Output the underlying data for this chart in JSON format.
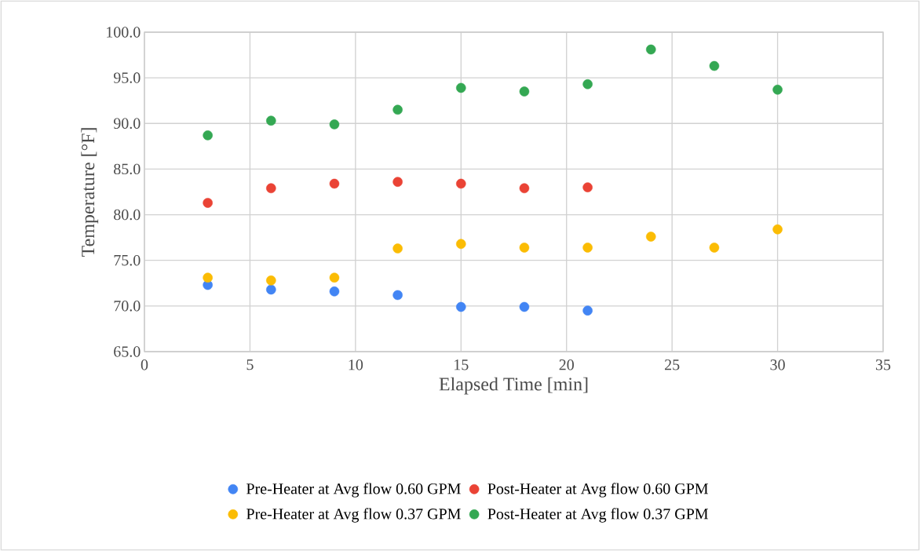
{
  "chart_data": {
    "type": "scatter",
    "xlabel": "Elapsed Time [min]",
    "ylabel": "Temperature [°F]",
    "xlim": [
      0,
      35
    ],
    "xticks": [
      0,
      5,
      10,
      15,
      20,
      25,
      30,
      35
    ],
    "ylim": [
      65,
      100
    ],
    "yticks": [
      {
        "value": 65,
        "label": "65.0"
      },
      {
        "value": 70,
        "label": "70.0"
      },
      {
        "value": 75,
        "label": "75.0"
      },
      {
        "value": 80,
        "label": "80.0"
      },
      {
        "value": 85,
        "label": "85.0"
      },
      {
        "value": 90,
        "label": "90.0"
      },
      {
        "value": 95,
        "label": "95.0"
      },
      {
        "value": 100,
        "label": "100.0"
      }
    ],
    "grid": true,
    "legend": "bottom",
    "series": [
      {
        "name": "Pre-Heater at Avg flow 0.60 GPM",
        "color": "#4285f4",
        "x": [
          3,
          6,
          9,
          12,
          15,
          18,
          21
        ],
        "values": [
          72.3,
          71.8,
          71.6,
          71.2,
          69.9,
          69.9,
          69.5
        ]
      },
      {
        "name": "Post-Heater at Avg flow 0.60 GPM",
        "color": "#ea4335",
        "x": [
          3,
          6,
          9,
          12,
          15,
          18,
          21
        ],
        "values": [
          81.3,
          82.9,
          83.4,
          83.6,
          83.4,
          82.9,
          83.0
        ]
      },
      {
        "name": "Pre-Heater at Avg flow 0.37 GPM",
        "color": "#fbbc04",
        "x": [
          3,
          6,
          9,
          12,
          15,
          18,
          21,
          24,
          27,
          30
        ],
        "values": [
          73.1,
          72.8,
          73.1,
          76.3,
          76.8,
          76.4,
          76.4,
          77.6,
          76.4,
          78.4
        ]
      },
      {
        "name": "Post-Heater at Avg flow 0.37 GPM",
        "color": "#34a853",
        "x": [
          3,
          6,
          9,
          12,
          15,
          18,
          21,
          24,
          27,
          30
        ],
        "values": [
          88.7,
          90.3,
          89.9,
          91.5,
          93.9,
          93.5,
          94.3,
          98.1,
          96.3,
          93.7
        ]
      }
    ]
  }
}
